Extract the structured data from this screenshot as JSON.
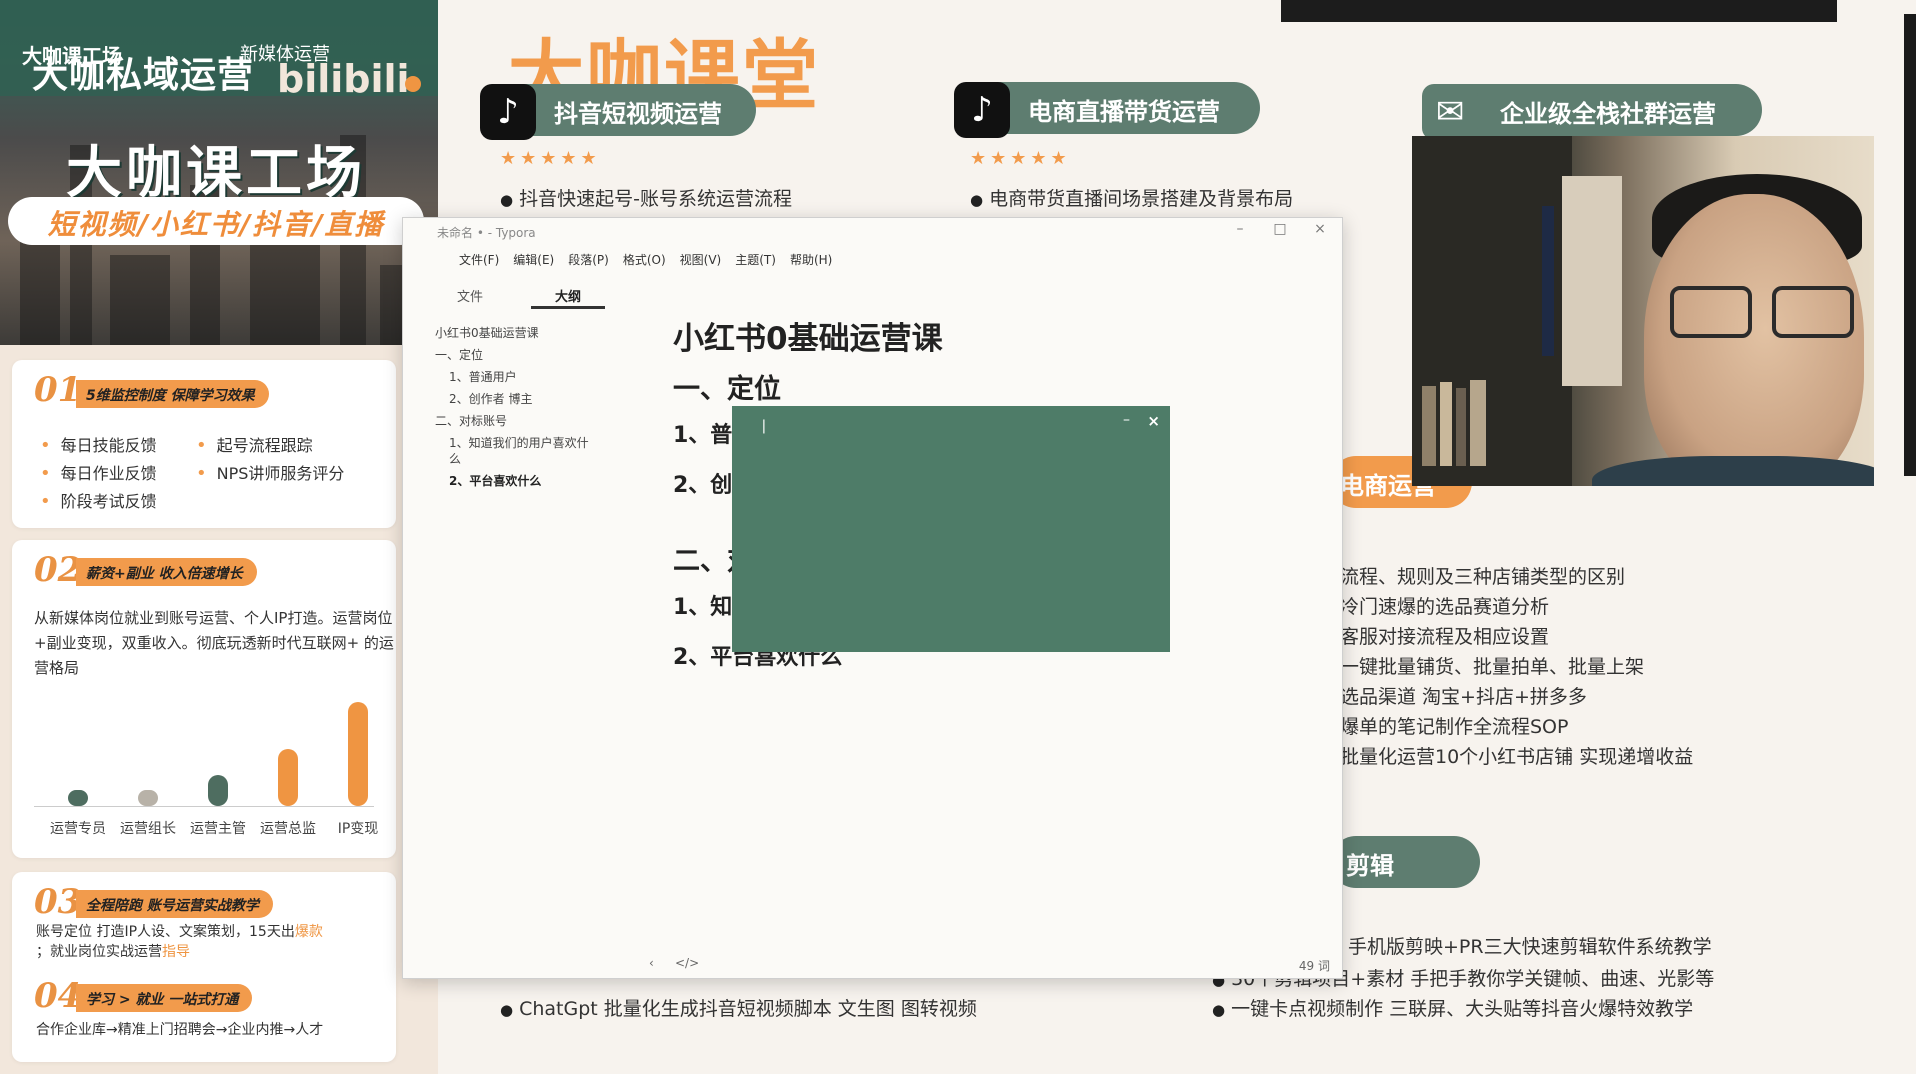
{
  "left_promo": {
    "banner": {
      "sub": "大咖课工场",
      "title": "大咖私域运营",
      "media": "新媒体运营",
      "logo_text": "bilibili",
      "big": "大咖课工场",
      "pill": "短视频/小红书/抖音/直播"
    },
    "sec1": {
      "num": "01",
      "tag": "5维监控制度 保障学习效果",
      "items": [
        "每日技能反馈",
        "起号流程跟踪",
        "每日作业反馈",
        "NPS讲师服务评分",
        "阶段考试反馈"
      ]
    },
    "sec2": {
      "num": "02",
      "tag": "薪资+副业 收入倍速增长",
      "para": "从新媒体岗位就业到账号运营、个人IP打造。运营岗位+副业变现，双重收入。彻底玩透新时代互联网+ 的运营格局",
      "chart_data": {
        "type": "bar",
        "categories": [
          "运营专员",
          "运营组长",
          "运营主管",
          "运营总监",
          "IP变现"
        ],
        "values": [
          1,
          1.5,
          3,
          5.5,
          10
        ],
        "colors": [
          "#4e6d60",
          "#b8b2a8",
          "#4e6d60",
          "#ef9542",
          "#ef9542"
        ]
      }
    },
    "sec3": {
      "num": "03",
      "tag": "全程陪跑 账号运营实战教学",
      "line1_a": "账号定位 打造IP人设、文案策划，15天出",
      "line1_b": "爆款",
      "line2_a": "；就业岗位实战运营",
      "line2_b": "指导"
    },
    "sec4": {
      "num": "04",
      "tag": "学习 > 就业 一站式打通",
      "line1": "合作企业库→精准上门招聘会→企业内推→人才"
    }
  },
  "slide": {
    "brand": "大咖课堂",
    "channels": [
      {
        "icon": "♪",
        "title": "抖音短视频运营",
        "stars": "★★★★★",
        "line": "抖音快速起号-账号系统运营流程"
      },
      {
        "icon": "♪",
        "title": "电商直播带货运营",
        "stars": "★★★★★",
        "line": "电商带货直播间场景搭建及背景布局"
      },
      {
        "icon": "✉",
        "title": "企业级全栈社群运营"
      }
    ],
    "mid_head": "电商运营",
    "mid_lines": [
      "流程、规则及三种店铺类型的区别",
      "冷门速爆的选品赛道分析",
      "客服对接流程及相应设置",
      "一键批量铺货、批量拍单、批量上架",
      "选品渠道 淘宝+抖店+拼多多",
      "爆单的笔记制作全流程SOP",
      "批量化运营10个小红书店铺 实现递增收益"
    ],
    "edit_head": "剪辑",
    "edit_lines": [
      "手机版剪映+PR三大快速剪辑软件系统教学",
      "30个剪辑项目+素材 手把手教你学关键帧、曲速、光影等",
      "一键卡点视频制作 三联屏、大头贴等抖音火爆特效教学"
    ],
    "bottom_left_line": "ChatGpt 批量化生成抖音短视频脚本 文生图 图转视频"
  },
  "typora": {
    "title": "未命名 • - Typora",
    "menus": [
      "文件(F)",
      "编辑(E)",
      "段落(P)",
      "格式(O)",
      "视图(V)",
      "主题(T)",
      "帮助(H)"
    ],
    "tabs": [
      "文件",
      "大纲"
    ],
    "outline": [
      "小红书0基础运营课",
      "一、定位",
      "1、普通用户",
      "2、创作者 博主",
      "二、对标账号",
      "1、知道我们的用户喜欢什",
      "么",
      "2、平台喜欢什么"
    ],
    "doc": {
      "h1": "小红书0基础运营课",
      "h2a": "一、定位",
      "h3a": "1、普",
      "h3b": "2、创",
      "h2b": "二、对",
      "h3c": "1、知",
      "h3d": "2、平台喜欢什么"
    },
    "status": {
      "words": "49 词"
    }
  }
}
